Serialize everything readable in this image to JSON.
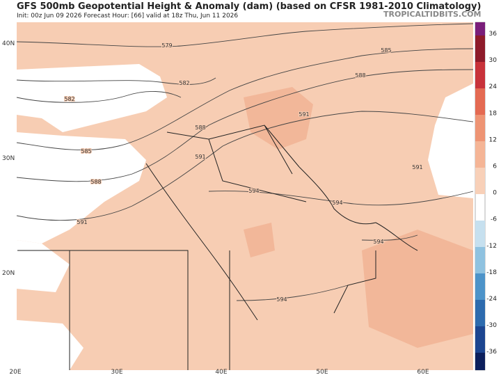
{
  "header": {
    "title": "GFS 500mb Geopotential Height & Anomaly (dam) (based on CFSR 1981-2010 Climatology)",
    "subtitle": "Init: 00z Jun 09 2026   Forecast Hour: [66]   valid at 18z Thu, Jun 11 2026",
    "site": "TROPICALTIDBITS.COM"
  },
  "map": {
    "lat_labels": [
      "40N",
      "30N",
      "20N"
    ],
    "lon_labels": [
      "20E",
      "30E",
      "40E",
      "50E",
      "60E"
    ],
    "contour_labels": [
      "579",
      "582",
      "582",
      "585",
      "585",
      "588",
      "588",
      "588",
      "591",
      "591",
      "591",
      "591",
      "594",
      "594",
      "594",
      "594"
    ]
  },
  "colorbar": {
    "ticks": [
      36,
      30,
      24,
      18,
      12,
      6,
      0,
      -6,
      -12,
      -18,
      -24,
      -30,
      -36
    ]
  }
}
